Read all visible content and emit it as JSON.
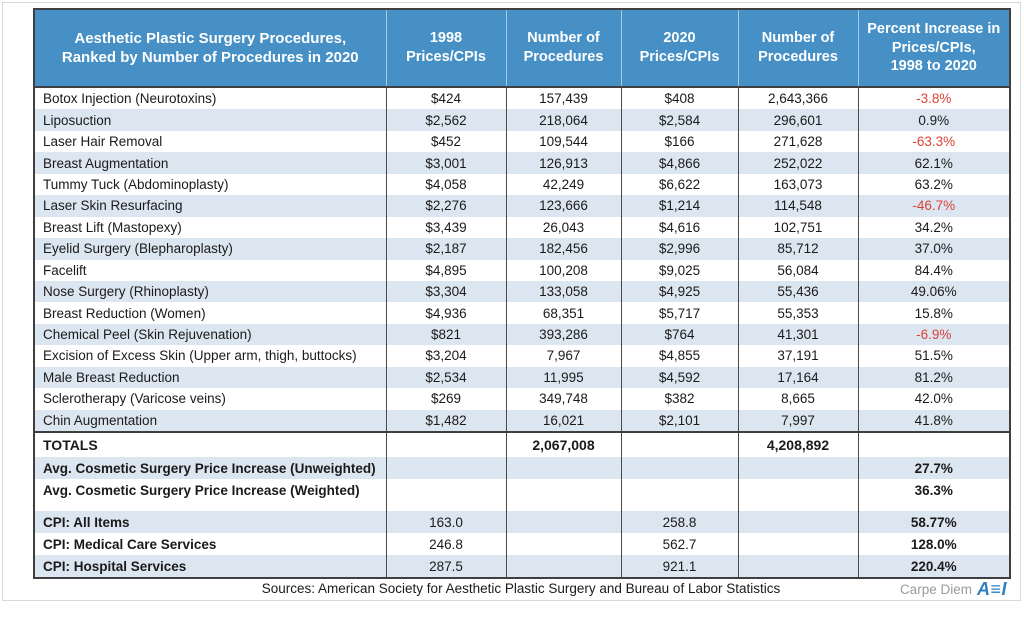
{
  "colors": {
    "header_bg": "#4690c6",
    "row_stripe": "#dce6f1",
    "negative_text": "#dc4237",
    "logo_blue": "#2f7fc1",
    "logo_gray": "#9b9b9b",
    "border_dark": "#3f3f3f"
  },
  "header": {
    "title": "Aesthetic Plastic Surgery Procedures,\nRanked by Number of Procedures in 2020",
    "col_price_1998": "1998\nPrices/CPIs",
    "col_procedures_1998": "Number of\nProcedures",
    "col_price_2020": "2020\nPrices/CPIs",
    "col_procedures_2020": "Number of\nProcedures",
    "col_pct": "Percent Increase in\nPrices/CPIs,\n1998 to 2020"
  },
  "rows": [
    {
      "procedure": "Botox Injection (Neurotoxins)",
      "price_1998": "$424",
      "procedures_1998": "157,439",
      "price_2020": "$408",
      "procedures_2020": "2,643,366",
      "pct_change": "-3.8%"
    },
    {
      "procedure": "Liposuction",
      "price_1998": "$2,562",
      "procedures_1998": "218,064",
      "price_2020": "$2,584",
      "procedures_2020": "296,601",
      "pct_change": "0.9%"
    },
    {
      "procedure": "Laser Hair Removal",
      "price_1998": "$452",
      "procedures_1998": "109,544",
      "price_2020": "$166",
      "procedures_2020": "271,628",
      "pct_change": "-63.3%"
    },
    {
      "procedure": "Breast Augmentation",
      "price_1998": "$3,001",
      "procedures_1998": "126,913",
      "price_2020": "$4,866",
      "procedures_2020": "252,022",
      "pct_change": "62.1%"
    },
    {
      "procedure": "Tummy Tuck (Abdominoplasty)",
      "price_1998": "$4,058",
      "procedures_1998": "42,249",
      "price_2020": "$6,622",
      "procedures_2020": "163,073",
      "pct_change": "63.2%"
    },
    {
      "procedure": "Laser Skin Resurfacing",
      "price_1998": "$2,276",
      "procedures_1998": "123,666",
      "price_2020": "$1,214",
      "procedures_2020": "114,548",
      "pct_change": "-46.7%"
    },
    {
      "procedure": "Breast Lift (Mastopexy)",
      "price_1998": "$3,439",
      "procedures_1998": "26,043",
      "price_2020": "$4,616",
      "procedures_2020": "102,751",
      "pct_change": "34.2%"
    },
    {
      "procedure": "Eyelid Surgery (Blepharoplasty)",
      "price_1998": "$2,187",
      "procedures_1998": "182,456",
      "price_2020": "$2,996",
      "procedures_2020": "85,712",
      "pct_change": "37.0%"
    },
    {
      "procedure": "Facelift",
      "price_1998": "$4,895",
      "procedures_1998": "100,208",
      "price_2020": "$9,025",
      "procedures_2020": "56,084",
      "pct_change": "84.4%"
    },
    {
      "procedure": "Nose Surgery (Rhinoplasty)",
      "price_1998": "$3,304",
      "procedures_1998": "133,058",
      "price_2020": "$4,925",
      "procedures_2020": "55,436",
      "pct_change": "49.06%"
    },
    {
      "procedure": "Breast Reduction (Women)",
      "price_1998": "$4,936",
      "procedures_1998": "68,351",
      "price_2020": "$5,717",
      "procedures_2020": "55,353",
      "pct_change": "15.8%"
    },
    {
      "procedure": "Chemical Peel (Skin Rejuvenation)",
      "price_1998": "$821",
      "procedures_1998": "393,286",
      "price_2020": "$764",
      "procedures_2020": "41,301",
      "pct_change": "-6.9%"
    },
    {
      "procedure": "Excision of Excess Skin (Upper arm, thigh, buttocks)",
      "price_1998": "$3,204",
      "procedures_1998": "7,967",
      "price_2020": "$4,855",
      "procedures_2020": "37,191",
      "pct_change": "51.5%"
    },
    {
      "procedure": "Male Breast Reduction",
      "price_1998": "$2,534",
      "procedures_1998": "11,995",
      "price_2020": "$4,592",
      "procedures_2020": "17,164",
      "pct_change": "81.2%"
    },
    {
      "procedure": "Sclerotherapy (Varicose veins)",
      "price_1998": "$269",
      "procedures_1998": "349,748",
      "price_2020": "$382",
      "procedures_2020": "8,665",
      "pct_change": "42.0%"
    },
    {
      "procedure": "Chin Augmentation",
      "price_1998": "$1,482",
      "procedures_1998": "16,021",
      "price_2020": "$2,101",
      "procedures_2020": "7,997",
      "pct_change": "41.8%"
    }
  ],
  "totals": {
    "label": "TOTALS",
    "procedures_1998": "2,067,008",
    "procedures_2020": "4,208,892"
  },
  "averages": [
    {
      "label": "Avg. Cosmetic Surgery Price Increase (Unweighted)",
      "pct": "27.7%"
    },
    {
      "label": "Avg. Cosmetic Surgery Price Increase (Weighted)",
      "pct": "36.3%"
    }
  ],
  "cpi_rows": [
    {
      "label": "CPI: All Items",
      "value_1998": "163.0",
      "value_2020": "258.8",
      "pct": "58.77%"
    },
    {
      "label": "CPI: Medical Care Services",
      "value_1998": "246.8",
      "value_2020": "562.7",
      "pct": "128.0%"
    },
    {
      "label": "CPI: Hospital Services",
      "value_1998": "287.5",
      "value_2020": "921.1",
      "pct": "220.4%"
    }
  ],
  "footer": {
    "sources": "Sources: American Society for Aesthetic Plastic Surgery and Bureau of Labor Statistics",
    "logo_carpe": "Carpe Diem",
    "logo_aei_a": "A",
    "logo_aei_e": "≡",
    "logo_aei_i": "I"
  },
  "chart_data": {
    "type": "table",
    "title": "Aesthetic Plastic Surgery Procedures, Ranked by Number of Procedures in 2020",
    "columns": [
      "Procedure",
      "1998 Prices/CPIs",
      "Number of Procedures (1998)",
      "2020 Prices/CPIs",
      "Number of Procedures (2020)",
      "Percent Increase in Prices/CPIs, 1998 to 2020"
    ],
    "rows": [
      [
        "Botox Injection (Neurotoxins)",
        424,
        157439,
        408,
        2643366,
        -3.8
      ],
      [
        "Liposuction",
        2562,
        218064,
        2584,
        296601,
        0.9
      ],
      [
        "Laser Hair Removal",
        452,
        109544,
        166,
        271628,
        -63.3
      ],
      [
        "Breast Augmentation",
        3001,
        126913,
        4866,
        252022,
        62.1
      ],
      [
        "Tummy Tuck (Abdominoplasty)",
        4058,
        42249,
        6622,
        163073,
        63.2
      ],
      [
        "Laser Skin Resurfacing",
        2276,
        123666,
        1214,
        114548,
        -46.7
      ],
      [
        "Breast Lift (Mastopexy)",
        3439,
        26043,
        4616,
        102751,
        34.2
      ],
      [
        "Eyelid Surgery (Blepharoplasty)",
        2187,
        182456,
        2996,
        85712,
        37.0
      ],
      [
        "Facelift",
        4895,
        100208,
        9025,
        56084,
        84.4
      ],
      [
        "Nose Surgery (Rhinoplasty)",
        3304,
        133058,
        4925,
        55436,
        49.06
      ],
      [
        "Breast Reduction (Women)",
        4936,
        68351,
        5717,
        55353,
        15.8
      ],
      [
        "Chemical Peel (Skin Rejuvenation)",
        821,
        393286,
        764,
        41301,
        -6.9
      ],
      [
        "Excision of Excess Skin (Upper arm, thigh, buttocks)",
        3204,
        7967,
        4855,
        37191,
        51.5
      ],
      [
        "Male Breast Reduction",
        2534,
        11995,
        4592,
        17164,
        81.2
      ],
      [
        "Sclerotherapy (Varicose veins)",
        269,
        349748,
        382,
        8665,
        42.0
      ],
      [
        "Chin Augmentation",
        1482,
        16021,
        2101,
        7997,
        41.8
      ]
    ],
    "totals": {
      "procedures_1998": 2067008,
      "procedures_2020": 4208892
    },
    "avg_price_increase_unweighted_pct": 27.7,
    "avg_price_increase_weighted_pct": 36.3,
    "cpi": [
      {
        "name": "CPI: All Items",
        "v1998": 163.0,
        "v2020": 258.8,
        "pct": 58.77
      },
      {
        "name": "CPI: Medical Care Services",
        "v1998": 246.8,
        "v2020": 562.7,
        "pct": 128.0
      },
      {
        "name": "CPI: Hospital Services",
        "v1998": 287.5,
        "v2020": 921.1,
        "pct": 220.4
      }
    ],
    "sources": "American Society for Aesthetic Plastic Surgery and Bureau of Labor Statistics"
  }
}
